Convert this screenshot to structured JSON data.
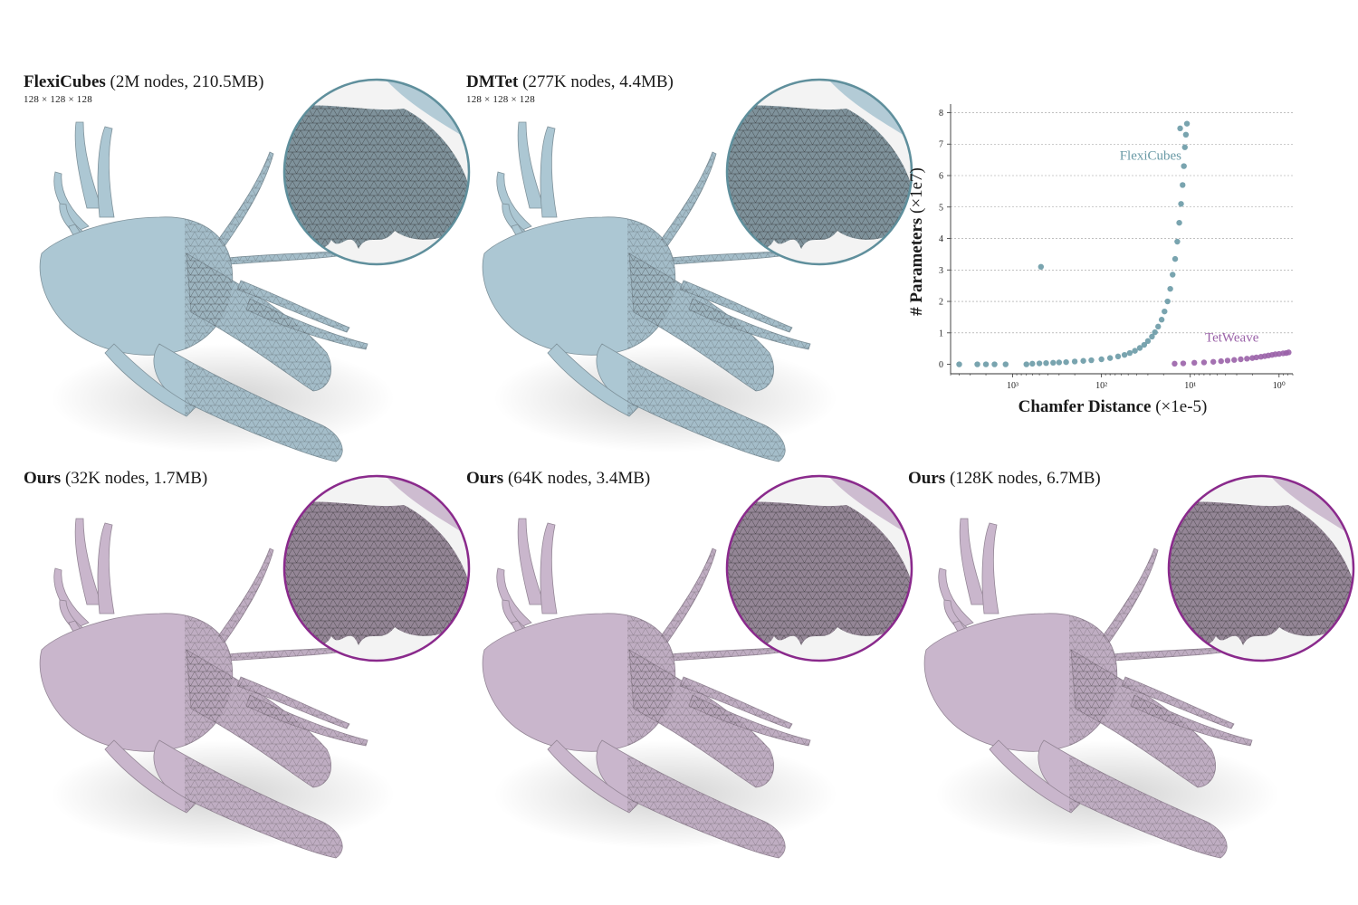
{
  "figure": {
    "panels": [
      {
        "id": "flexicubes",
        "method": "FlexiCubes",
        "detail": "(2M nodes, 210.5MB)",
        "resolution": "128 × 128 × 128",
        "color": "#a9c3cf",
        "ring": "#5f8f9c"
      },
      {
        "id": "dmtet",
        "method": "DMTet",
        "detail": "(277K nodes, 4.4MB)",
        "resolution": "128 × 128 × 128",
        "color": "#a9c3cf",
        "ring": "#5f8f9c"
      },
      {
        "id": "ours32",
        "method": "Ours",
        "detail": "(32K nodes, 1.7MB)",
        "resolution": "",
        "color": "#c5b2c8",
        "ring": "#8a2a8c"
      },
      {
        "id": "ours64",
        "method": "Ours",
        "detail": "(64K nodes, 3.4MB)",
        "resolution": "",
        "color": "#c5b2c8",
        "ring": "#8a2a8c"
      },
      {
        "id": "ours128",
        "method": "Ours",
        "detail": "(128K nodes, 6.7MB)",
        "resolution": "",
        "color": "#c5b2c8",
        "ring": "#8a2a8c"
      }
    ]
  },
  "chart_data": {
    "type": "scatter",
    "xlabel_bold": "Chamfer Distance",
    "xlabel_unit": "(×1e-5)",
    "ylabel_bold": "# Parameters",
    "ylabel_unit": "(×1e7)",
    "x_scale": "log-reversed",
    "xlim": [
      5000,
      0.7
    ],
    "ylim": [
      -0.3,
      8.1
    ],
    "x_ticks": [
      1000,
      100,
      10,
      1
    ],
    "x_tick_labels": [
      "10³",
      "10²",
      "10¹",
      "10⁰"
    ],
    "y_ticks": [
      0,
      1,
      2,
      3,
      4,
      5,
      6,
      7,
      8
    ],
    "y_tick_labels": [
      "0",
      "1",
      "2",
      "3",
      "4",
      "5",
      "6",
      "7",
      "8"
    ],
    "grid": "horizontal-dashed",
    "series": [
      {
        "name": "FlexiCubes",
        "color": "#6a9aa6",
        "points": [
          [
            4000,
            0
          ],
          [
            2500,
            0
          ],
          [
            2000,
            0
          ],
          [
            1600,
            0
          ],
          [
            1200,
            0
          ],
          [
            700,
            0
          ],
          [
            600,
            0.02
          ],
          [
            500,
            0.03
          ],
          [
            420,
            0.04
          ],
          [
            350,
            0.05
          ],
          [
            300,
            0.06
          ],
          [
            250,
            0.07
          ],
          [
            200,
            0.09
          ],
          [
            160,
            0.11
          ],
          [
            130,
            0.13
          ],
          [
            100,
            0.16
          ],
          [
            80,
            0.2
          ],
          [
            65,
            0.25
          ],
          [
            55,
            0.3
          ],
          [
            48,
            0.36
          ],
          [
            42,
            0.43
          ],
          [
            37,
            0.52
          ],
          [
            33,
            0.62
          ],
          [
            30,
            0.74
          ],
          [
            27,
            0.88
          ],
          [
            25,
            1.02
          ],
          [
            23,
            1.2
          ],
          [
            21,
            1.42
          ],
          [
            19.5,
            1.68
          ],
          [
            18,
            2.0
          ],
          [
            16.8,
            2.4
          ],
          [
            15.8,
            2.85
          ],
          [
            14.8,
            3.35
          ],
          [
            14,
            3.9
          ],
          [
            13.3,
            4.5
          ],
          [
            12.7,
            5.1
          ],
          [
            12.2,
            5.7
          ],
          [
            11.8,
            6.3
          ],
          [
            11.5,
            6.9
          ],
          [
            11.2,
            7.3
          ],
          [
            10.9,
            7.65
          ],
          [
            13,
            7.5
          ],
          [
            480,
            3.1
          ]
        ]
      },
      {
        "name": "TetWeave",
        "color": "#9a62a8",
        "points": [
          [
            15,
            0.02
          ],
          [
            12,
            0.03
          ],
          [
            9,
            0.05
          ],
          [
            7,
            0.06
          ],
          [
            5.5,
            0.08
          ],
          [
            4.5,
            0.1
          ],
          [
            3.8,
            0.12
          ],
          [
            3.2,
            0.14
          ],
          [
            2.7,
            0.16
          ],
          [
            2.3,
            0.18
          ],
          [
            2.0,
            0.2
          ],
          [
            1.8,
            0.22
          ],
          [
            1.6,
            0.24
          ],
          [
            1.45,
            0.26
          ],
          [
            1.32,
            0.28
          ],
          [
            1.2,
            0.3
          ],
          [
            1.1,
            0.32
          ],
          [
            1.0,
            0.33
          ],
          [
            0.9,
            0.35
          ],
          [
            0.83,
            0.36
          ],
          [
            0.78,
            0.38
          ]
        ]
      }
    ],
    "annotations": [
      {
        "text": "FlexiCubes",
        "x": 28,
        "y": 6.5,
        "color": "#6a9aa6"
      },
      {
        "text": "TetWeave",
        "x": 3.4,
        "y": 0.72,
        "color": "#9a62a8"
      }
    ]
  }
}
